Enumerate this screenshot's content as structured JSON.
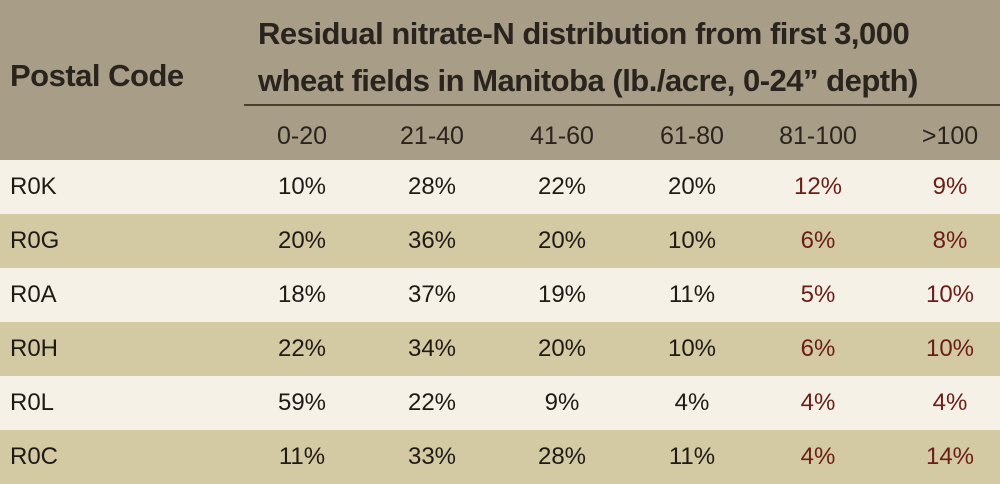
{
  "header": {
    "postal_code_label": "Postal Code",
    "title_line1": "Residual nitrate-N distribution from first 3,000",
    "title_line2": "wheat fields in Manitoba (lb./acre, 0-24” depth)",
    "columns": [
      "0-20",
      "21-40",
      "41-60",
      "61-80",
      "81-100",
      ">100"
    ]
  },
  "colors": {
    "header_bg": "#a89d87",
    "row_light": "#f6f1e6",
    "row_dark": "#d3c9a2",
    "text": "#1f1a15",
    "highlight_text": "#6a1e18"
  },
  "rows": [
    {
      "code": "R0K",
      "values": [
        "10%",
        "28%",
        "22%",
        "20%",
        "12%",
        "9%"
      ]
    },
    {
      "code": "R0G",
      "values": [
        "20%",
        "36%",
        "20%",
        "10%",
        "6%",
        "8%"
      ]
    },
    {
      "code": "R0A",
      "values": [
        "18%",
        "37%",
        "19%",
        "11%",
        "5%",
        "10%"
      ]
    },
    {
      "code": "R0H",
      "values": [
        "22%",
        "34%",
        "20%",
        "10%",
        "6%",
        "10%"
      ]
    },
    {
      "code": "R0L",
      "values": [
        "59%",
        "22%",
        "9%",
        "4%",
        "4%",
        "4%"
      ]
    },
    {
      "code": "R0C",
      "values": [
        "11%",
        "33%",
        "28%",
        "11%",
        "4%",
        "14%"
      ]
    }
  ]
}
